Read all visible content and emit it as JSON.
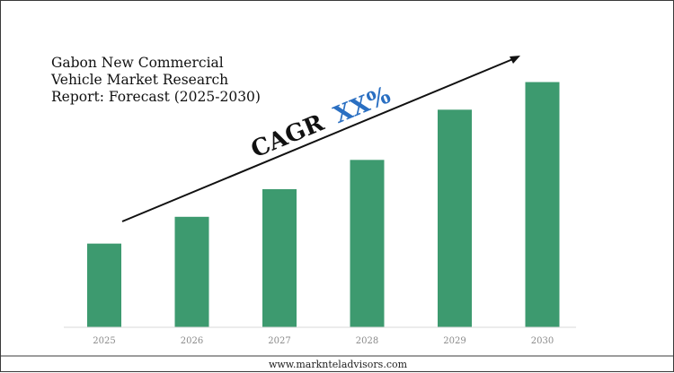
{
  "chart_data": {
    "type": "bar",
    "title": [
      "Gabon New Commercial",
      "Vehicle Market Research",
      "Report: Forecast (2025-2030)"
    ],
    "categories": [
      "2025",
      "2026",
      "2027",
      "2028",
      "2029",
      "2030"
    ],
    "values": [
      1.0,
      1.32,
      1.65,
      2.0,
      2.6,
      2.93
    ],
    "ylim": [
      0,
      3.0
    ],
    "xlabel": "",
    "ylabel": "",
    "grid": false,
    "bar_color": "#3d9a6f",
    "annotation": {
      "cagr_prefix": "CAGR",
      "cagr_value": "XX%",
      "value_color": "#2a6fc2"
    }
  },
  "footer": {
    "website": "www.marknteladvisors.com"
  }
}
